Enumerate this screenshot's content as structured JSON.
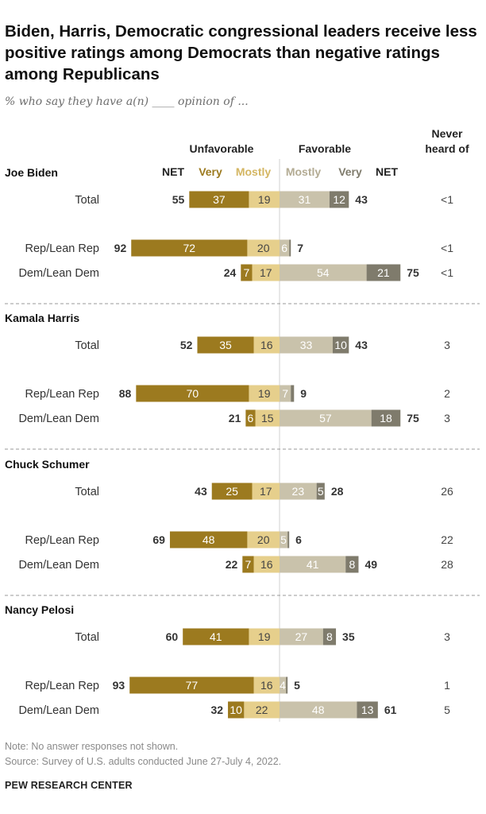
{
  "title": "Biden, Harris, Democratic congressional leaders receive less positive ratings among Democrats than negative ratings among Republicans",
  "subtitle": "% who say they have a(n) ____ opinion of ...",
  "note": "Note: No answer responses not shown.",
  "source": "Source: Survey of U.S. adults conducted June 27-July 4, 2022.",
  "org": "PEW RESEARCH CENTER",
  "colors": {
    "unfav_very": "#9c7a1f",
    "unfav_mostly": "#e6cf8c",
    "fav_mostly": "#c9c2ab",
    "fav_very": "#7f7b6c",
    "header_unfav": "#9c7a1f",
    "header_unfav_light": "#d4b662",
    "header_fav": "#b3ab93",
    "header_fav_dark": "#7f7b6c"
  },
  "chart_data": {
    "type": "bar",
    "layout": "diverging-stacked",
    "headers": {
      "unfavorable": "Unfavorable",
      "favorable": "Favorable",
      "never_heard": "Never heard of",
      "net": "NET",
      "very": "Very",
      "mostly": "Mostly"
    },
    "groups": [
      {
        "name": "Joe Biden",
        "rows": [
          {
            "label": "Total",
            "unfav_net": 55,
            "unfav_very": 37,
            "unfav_mostly": 19,
            "fav_mostly": 31,
            "fav_very": 12,
            "fav_net": 43,
            "never": "<1"
          },
          {
            "label": "Rep/Lean Rep",
            "unfav_net": 92,
            "unfav_very": 72,
            "unfav_mostly": 20,
            "fav_mostly": 6,
            "fav_very": 1,
            "fav_net": 7,
            "never": "<1"
          },
          {
            "label": "Dem/Lean Dem",
            "unfav_net": 24,
            "unfav_very": 7,
            "unfav_mostly": 17,
            "fav_mostly": 54,
            "fav_very": 21,
            "fav_net": 75,
            "never": "<1"
          }
        ]
      },
      {
        "name": "Kamala Harris",
        "rows": [
          {
            "label": "Total",
            "unfav_net": 52,
            "unfav_very": 35,
            "unfav_mostly": 16,
            "fav_mostly": 33,
            "fav_very": 10,
            "fav_net": 43,
            "never": "3"
          },
          {
            "label": "Rep/Lean Rep",
            "unfav_net": 88,
            "unfav_very": 70,
            "unfav_mostly": 19,
            "fav_mostly": 7,
            "fav_very": 2,
            "fav_net": 9,
            "never": "2"
          },
          {
            "label": "Dem/Lean Dem",
            "unfav_net": 21,
            "unfav_very": 6,
            "unfav_mostly": 15,
            "fav_mostly": 57,
            "fav_very": 18,
            "fav_net": 75,
            "never": "3"
          }
        ]
      },
      {
        "name": "Chuck Schumer",
        "rows": [
          {
            "label": "Total",
            "unfav_net": 43,
            "unfav_very": 25,
            "unfav_mostly": 17,
            "fav_mostly": 23,
            "fav_very": 5,
            "fav_net": 28,
            "never": "26"
          },
          {
            "label": "Rep/Lean Rep",
            "unfav_net": 69,
            "unfav_very": 48,
            "unfav_mostly": 20,
            "fav_mostly": 5,
            "fav_very": 1,
            "fav_net": 6,
            "never": "22"
          },
          {
            "label": "Dem/Lean Dem",
            "unfav_net": 22,
            "unfav_very": 7,
            "unfav_mostly": 16,
            "fav_mostly": 41,
            "fav_very": 8,
            "fav_net": 49,
            "never": "28"
          }
        ]
      },
      {
        "name": "Nancy Pelosi",
        "rows": [
          {
            "label": "Total",
            "unfav_net": 60,
            "unfav_very": 41,
            "unfav_mostly": 19,
            "fav_mostly": 27,
            "fav_very": 8,
            "fav_net": 35,
            "never": "3"
          },
          {
            "label": "Rep/Lean Rep",
            "unfav_net": 93,
            "unfav_very": 77,
            "unfav_mostly": 16,
            "fav_mostly": 4,
            "fav_very": 1,
            "fav_net": 5,
            "never": "1"
          },
          {
            "label": "Dem/Lean Dem",
            "unfav_net": 32,
            "unfav_very": 10,
            "unfav_mostly": 22,
            "fav_mostly": 48,
            "fav_very": 13,
            "fav_net": 61,
            "never": "5"
          }
        ]
      }
    ]
  }
}
